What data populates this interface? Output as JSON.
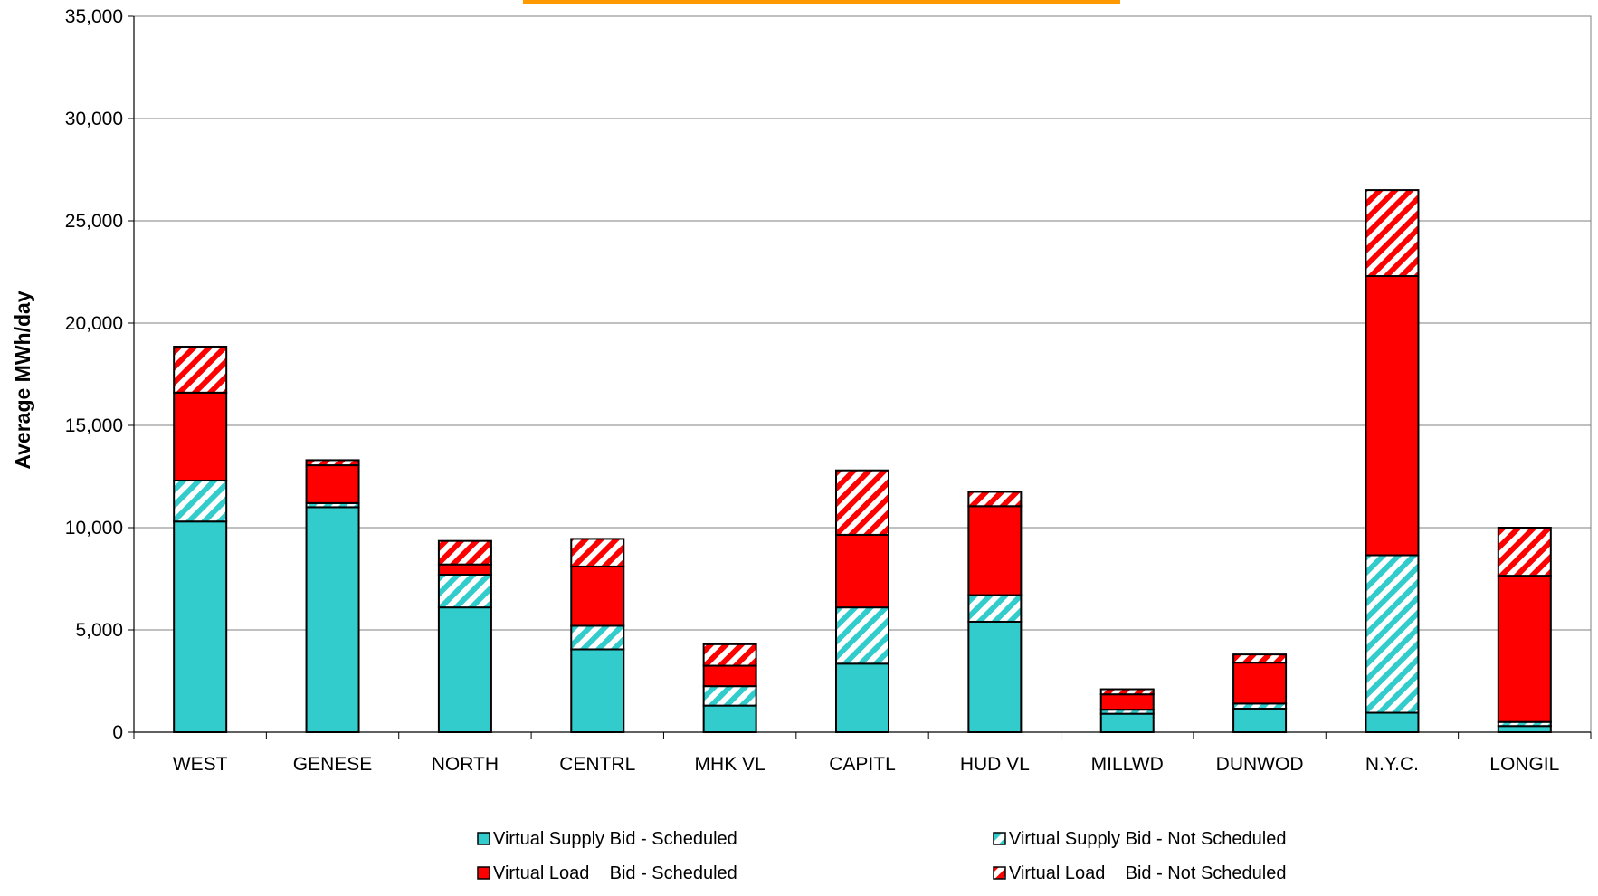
{
  "chart_data": {
    "type": "bar",
    "stacked": true,
    "title": "",
    "xlabel": "",
    "ylabel": "Average MWh/day",
    "ylim": [
      0,
      35000
    ],
    "y_ticks": [
      0,
      5000,
      10000,
      15000,
      20000,
      25000,
      30000,
      35000
    ],
    "y_tick_labels": [
      "0",
      "5,000",
      "10,000",
      "15,000",
      "20,000",
      "25,000",
      "30,000",
      "35,000"
    ],
    "grid": true,
    "legend_position": "bottom",
    "categories": [
      "WEST",
      "GENESE",
      "NORTH",
      "CENTRL",
      "MHK VL",
      "CAPITL",
      "HUD VL",
      "MILLWD",
      "DUNWOD",
      "N.Y.C.",
      "LONGIL"
    ],
    "series": [
      {
        "name": "Virtual Supply Bid - Scheduled",
        "color": "#33CCCC",
        "pattern": "solid",
        "values": [
          10300,
          11000,
          6100,
          4050,
          1300,
          3350,
          5400,
          900,
          1150,
          950,
          300
        ]
      },
      {
        "name": "Virtual Supply Bid - Not Scheduled",
        "color": "#33CCCC",
        "pattern": "hatch",
        "values": [
          2000,
          200,
          1600,
          1150,
          950,
          2750,
          1300,
          200,
          250,
          7700,
          200
        ]
      },
      {
        "name": "Virtual Load    Bid - Scheduled",
        "color": "#FF0000",
        "pattern": "solid",
        "values": [
          4300,
          1850,
          500,
          2900,
          1000,
          3550,
          4350,
          750,
          2000,
          13650,
          7150
        ]
      },
      {
        "name": "Virtual Load    Bid - Not Scheduled",
        "color": "#FF0000",
        "pattern": "hatch",
        "values": [
          2250,
          250,
          1150,
          1350,
          1050,
          3150,
          700,
          250,
          400,
          4200,
          2350
        ]
      }
    ]
  }
}
